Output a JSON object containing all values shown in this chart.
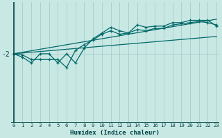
{
  "xlabel": "Humidex (Indice chaleur)",
  "bg_color": "#c8e8e4",
  "line_color": "#006868",
  "grid_color": "#a8cccc",
  "axis_color": "#004444",
  "x_ticks": [
    0,
    1,
    2,
    3,
    4,
    5,
    6,
    7,
    8,
    9,
    10,
    11,
    12,
    13,
    14,
    15,
    16,
    17,
    18,
    19,
    20,
    21,
    22,
    23
  ],
  "y_label_val": -2,
  "xlim": [
    -0.3,
    23.3
  ],
  "ylim": [
    -8.0,
    2.5
  ],
  "line1_x": [
    0,
    1,
    2,
    3,
    4,
    5,
    6,
    7,
    8,
    9,
    10,
    11,
    12,
    13,
    14,
    15,
    16,
    17,
    18,
    19,
    20,
    21,
    22,
    23
  ],
  "line1_y": [
    -2.0,
    -2.3,
    -2.8,
    -2.0,
    -2.0,
    -2.8,
    -2.0,
    -2.8,
    -1.5,
    -0.7,
    -0.2,
    0.3,
    0.0,
    -0.2,
    0.5,
    0.3,
    0.4,
    0.4,
    0.7,
    0.7,
    0.9,
    0.9,
    0.9,
    0.4
  ],
  "line2_x": [
    0,
    1,
    2,
    3,
    4,
    5,
    6,
    7,
    8,
    9,
    10,
    11,
    12,
    13,
    14,
    15,
    16,
    17,
    18,
    19,
    20,
    21,
    22,
    23
  ],
  "line2_y": [
    -2.0,
    -2.1,
    -2.5,
    -2.5,
    -2.5,
    -2.5,
    -3.2,
    -1.7,
    -1.2,
    -0.8,
    -0.3,
    0.0,
    -0.3,
    -0.2,
    0.1,
    0.0,
    0.2,
    0.2,
    0.5,
    0.6,
    0.7,
    0.8,
    0.7,
    0.5
  ],
  "line3_x": [
    0,
    23
  ],
  "line3_y": [
    -2.0,
    1.0
  ],
  "line4_x": [
    0,
    23
  ],
  "line4_y": [
    -2.0,
    -0.5
  ]
}
